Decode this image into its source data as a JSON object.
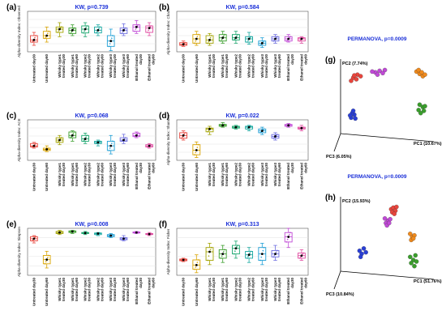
{
  "colors": [
    "#e8453c",
    "#d9a400",
    "#a3a300",
    "#3a9e2c",
    "#1aa66e",
    "#15a8a0",
    "#1f9fd6",
    "#6d6de0",
    "#c04ad6",
    "#e04aa0"
  ],
  "x_categories": [
    "Untreated day30",
    "Untreated day60",
    "Whisky type1 treated day30",
    "Whisky type1 treated day60",
    "Whisky type2 treated day30",
    "Whisky type2 treated day60",
    "Whisky type3 treated day30",
    "Whisky type3 treated day60",
    "Ethanol treated day30",
    "Ethanol treated day60"
  ],
  "chart_data": [
    {
      "type": "box",
      "panel": "(a)",
      "title": "KW, p=0.739",
      "ylabel": "Alpha-diversity Index: Observed",
      "ylim": [
        50,
        125
      ],
      "yticks": [],
      "boxes": [
        [
          62,
          68,
          72,
          80,
          86
        ],
        [
          68,
          75,
          80,
          88,
          96
        ],
        [
          78,
          86,
          92,
          96,
          104
        ],
        [
          80,
          84,
          90,
          94,
          100
        ],
        [
          78,
          85,
          92,
          98,
          104
        ],
        [
          80,
          85,
          90,
          96,
          100
        ],
        [
          52,
          60,
          70,
          80,
          92
        ],
        [
          80,
          84,
          90,
          94,
          102
        ],
        [
          84,
          88,
          96,
          100,
          108
        ],
        [
          80,
          86,
          94,
          98,
          104
        ]
      ]
    },
    {
      "type": "box",
      "panel": "(b)",
      "title": "KW, p=0.584",
      "ylabel": "Alpha-diversity Index: Chao1",
      "ylim": [
        50,
        125
      ],
      "yticks": [],
      "boxes": [
        [
          60,
          62,
          64,
          67,
          70
        ],
        [
          62,
          66,
          74,
          82,
          88
        ],
        [
          62,
          66,
          72,
          80,
          84
        ],
        [
          66,
          70,
          76,
          82,
          88
        ],
        [
          66,
          72,
          76,
          82,
          88
        ],
        [
          64,
          68,
          74,
          78,
          86
        ],
        [
          58,
          62,
          66,
          70,
          76
        ],
        [
          66,
          70,
          74,
          78,
          82
        ],
        [
          68,
          70,
          74,
          78,
          82
        ],
        [
          66,
          70,
          74,
          76,
          78
        ]
      ]
    },
    {
      "type": "box",
      "panel": "(c)",
      "title": "KW, p=0.068",
      "ylabel": "Alpha-diversity Index: ACE",
      "ylim": [
        45,
        115
      ],
      "yticks": [],
      "boxes": [
        [
          66,
          68,
          70,
          74,
          76
        ],
        [
          60,
          62,
          64,
          66,
          70
        ],
        [
          72,
          76,
          80,
          84,
          88
        ],
        [
          78,
          84,
          88,
          94,
          96
        ],
        [
          74,
          78,
          82,
          88,
          92
        ],
        [
          70,
          74,
          76,
          78,
          80
        ],
        [
          56,
          62,
          70,
          78,
          88
        ],
        [
          74,
          78,
          80,
          84,
          90
        ],
        [
          84,
          86,
          88,
          92,
          94
        ],
        [
          66,
          68,
          70,
          72,
          74
        ]
      ]
    },
    {
      "type": "box",
      "panel": "(d)",
      "title": "KW, p=0.022",
      "ylabel": "Alpha-diversity Index: Shannon",
      "ylim": [
        1.0,
        3.2
      ],
      "yticks": [],
      "boxes": [
        [
          2.1,
          2.2,
          2.35,
          2.5,
          2.6
        ],
        [
          1.15,
          1.3,
          1.55,
          1.85,
          2.0
        ],
        [
          2.4,
          2.55,
          2.7,
          2.75,
          2.85
        ],
        [
          2.8,
          2.85,
          2.9,
          2.95,
          3.05
        ],
        [
          2.7,
          2.75,
          2.8,
          2.85,
          2.9
        ],
        [
          2.6,
          2.7,
          2.8,
          2.85,
          2.9
        ],
        [
          2.4,
          2.5,
          2.6,
          2.7,
          2.8
        ],
        [
          2.1,
          2.2,
          2.3,
          2.4,
          2.5
        ],
        [
          2.8,
          2.85,
          2.9,
          2.95,
          3.0
        ],
        [
          2.6,
          2.7,
          2.75,
          2.8,
          2.9
        ]
      ]
    },
    {
      "type": "box",
      "panel": "(e)",
      "title": "KW, p=0.008",
      "ylabel": "Alpha-diversity Index: Simpson",
      "ylim": [
        0.55,
        1.0
      ],
      "yticks": [],
      "boxes": [
        [
          0.86,
          0.88,
          0.9,
          0.92,
          0.93
        ],
        [
          0.62,
          0.66,
          0.7,
          0.74,
          0.78
        ],
        [
          0.94,
          0.95,
          0.96,
          0.97,
          0.98
        ],
        [
          0.95,
          0.96,
          0.97,
          0.975,
          0.98
        ],
        [
          0.94,
          0.95,
          0.955,
          0.96,
          0.97
        ],
        [
          0.93,
          0.94,
          0.95,
          0.955,
          0.96
        ],
        [
          0.91,
          0.92,
          0.93,
          0.94,
          0.95
        ],
        [
          0.88,
          0.89,
          0.9,
          0.91,
          0.93
        ],
        [
          0.95,
          0.955,
          0.96,
          0.965,
          0.97
        ],
        [
          0.93,
          0.94,
          0.945,
          0.95,
          0.96
        ]
      ]
    },
    {
      "type": "box",
      "panel": "(f)",
      "title": "KW, p=0.313",
      "ylabel": "Alpha-diversity Index: Fisher",
      "ylim": [
        10,
        21
      ],
      "yticks": [],
      "boxes": [
        [
          13.2,
          13.4,
          13.6,
          13.8,
          14.0
        ],
        [
          10.6,
          11.4,
          12.4,
          13.6,
          14.8
        ],
        [
          12.5,
          13.5,
          15.5,
          16.5,
          17.5
        ],
        [
          13,
          14,
          15,
          16,
          17
        ],
        [
          14,
          15,
          16.3,
          17,
          18
        ],
        [
          13,
          14,
          14.8,
          15.6,
          16.5
        ],
        [
          12.5,
          13.5,
          15,
          16.5,
          17.5
        ],
        [
          13.5,
          14.3,
          15,
          15.8,
          17
        ],
        [
          16.5,
          17.8,
          19,
          20,
          21
        ],
        [
          13.5,
          14,
          14.6,
          15.2,
          16
        ]
      ]
    }
  ],
  "pcoa": [
    {
      "panel": "(g)",
      "title": "PERMANOVA, p=0.0009",
      "pc1": "PC1 (10.67%)",
      "pc2": "PC2 (7.74%)",
      "pc3": "PC3 (6.05%)",
      "clusters": [
        {
          "color": "#e8453c",
          "pts": [
            [
              0.12,
              0.2
            ],
            [
              0.16,
              0.16
            ],
            [
              0.1,
              0.24
            ],
            [
              0.15,
              0.22
            ],
            [
              0.19,
              0.18
            ],
            [
              0.13,
              0.17
            ]
          ]
        },
        {
          "color": "#c04ad6",
          "pts": [
            [
              0.33,
              0.13
            ],
            [
              0.37,
              0.11
            ],
            [
              0.4,
              0.14
            ],
            [
              0.3,
              0.12
            ],
            [
              0.35,
              0.16
            ],
            [
              0.42,
              0.1
            ]
          ]
        },
        {
          "color": "#f08a1c",
          "pts": [
            [
              0.72,
              0.12
            ],
            [
              0.75,
              0.15
            ],
            [
              0.78,
              0.18
            ],
            [
              0.74,
              0.1
            ],
            [
              0.8,
              0.16
            ],
            [
              0.77,
              0.13
            ]
          ]
        },
        {
          "color": "#3a9e2c",
          "pts": [
            [
              0.75,
              0.55
            ],
            [
              0.78,
              0.58
            ],
            [
              0.74,
              0.62
            ],
            [
              0.79,
              0.63
            ],
            [
              0.76,
              0.66
            ],
            [
              0.8,
              0.57
            ]
          ]
        },
        {
          "color": "#2a3fd6",
          "pts": [
            [
              0.1,
              0.72
            ],
            [
              0.13,
              0.68
            ],
            [
              0.11,
              0.66
            ],
            [
              0.14,
              0.73
            ],
            [
              0.09,
              0.69
            ],
            [
              0.12,
              0.63
            ]
          ]
        }
      ]
    },
    {
      "panel": "(h)",
      "title": "PERMANOVA, p=0.0009",
      "pc1": "PC1 (51.76%)",
      "pc2": "PC2 (15.93%)",
      "pc3": "PC3 (10.84%)",
      "clusters": [
        {
          "color": "#e8453c",
          "pts": [
            [
              0.48,
              0.12
            ],
            [
              0.5,
              0.1
            ],
            [
              0.52,
              0.14
            ],
            [
              0.49,
              0.16
            ],
            [
              0.53,
              0.09
            ],
            [
              0.51,
              0.18
            ]
          ]
        },
        {
          "color": "#c04ad6",
          "pts": [
            [
              0.42,
              0.24
            ],
            [
              0.45,
              0.27
            ],
            [
              0.43,
              0.3
            ],
            [
              0.47,
              0.25
            ],
            [
              0.44,
              0.33
            ],
            [
              0.46,
              0.3
            ]
          ]
        },
        {
          "color": "#f08a1c",
          "pts": [
            [
              0.66,
              0.44
            ],
            [
              0.68,
              0.48
            ],
            [
              0.7,
              0.46
            ],
            [
              0.67,
              0.52
            ],
            [
              0.69,
              0.5
            ]
          ]
        },
        {
          "color": "#3a9e2c",
          "pts": [
            [
              0.66,
              0.74
            ],
            [
              0.69,
              0.78
            ],
            [
              0.71,
              0.72
            ],
            [
              0.67,
              0.82
            ],
            [
              0.72,
              0.8
            ],
            [
              0.7,
              0.86
            ]
          ]
        },
        {
          "color": "#2a3fd6",
          "pts": [
            [
              0.18,
              0.66
            ],
            [
              0.22,
              0.63
            ],
            [
              0.2,
              0.7
            ],
            [
              0.24,
              0.68
            ],
            [
              0.19,
              0.74
            ]
          ]
        }
      ]
    }
  ]
}
